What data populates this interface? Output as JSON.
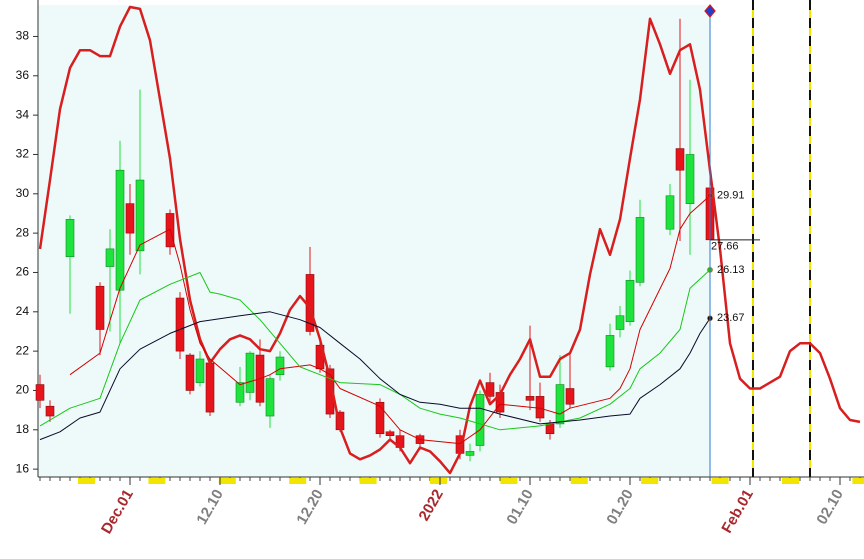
{
  "chart_data": {
    "type": "candlestick",
    "xlim": [
      -0.2,
      82.4
    ],
    "ylim": [
      15.6,
      39.6
    ],
    "yticks": [
      16,
      18,
      20,
      22,
      24,
      26,
      28,
      30,
      32,
      34,
      36,
      38
    ],
    "xticks": [
      {
        "value": 9,
        "label": "Dec.01"
      },
      {
        "value": 18,
        "label": "12.10"
      },
      {
        "value": 28,
        "label": "12.20"
      },
      {
        "value": 40,
        "label": "2022"
      },
      {
        "value": 49,
        "label": "01.10"
      },
      {
        "value": 59,
        "label": "01.20"
      },
      {
        "value": 71,
        "label": "Feb.01"
      },
      {
        "value": 80,
        "label": "02.10"
      }
    ],
    "up_color": "#1ee33c",
    "down_color": "#e8141c",
    "x": [
      0,
      1,
      3,
      6,
      7,
      8,
      9,
      10,
      13,
      14,
      15,
      16,
      17,
      20,
      21,
      22,
      23,
      24,
      27,
      28,
      29,
      30,
      34,
      35,
      36,
      38,
      42,
      43,
      44,
      45,
      46,
      49,
      50,
      51,
      52,
      53,
      57,
      58,
      59,
      60,
      63,
      64,
      65,
      67
    ],
    "open": [
      20.3,
      19.2,
      26.8,
      25.3,
      26.3,
      25.1,
      29.5,
      27.1,
      29.0,
      24.7,
      21.8,
      20.4,
      21.4,
      19.4,
      19.9,
      21.8,
      18.7,
      20.8,
      25.9,
      22.3,
      21.1,
      18.9,
      19.4,
      17.9,
      17.7,
      17.7,
      17.7,
      16.7,
      17.2,
      20.4,
      19.9,
      19.7,
      19.7,
      18.3,
      18.3,
      20.1,
      21.2,
      23.1,
      23.5,
      25.5,
      28.2,
      32.3,
      29.5,
      30.3
    ],
    "high": [
      20.8,
      19.5,
      28.9,
      25.5,
      28.2,
      32.7,
      30.5,
      35.3,
      29.2,
      25.0,
      21.9,
      22.0,
      21.6,
      21.2,
      22.0,
      22.6,
      20.8,
      22.0,
      27.3,
      22.6,
      21.3,
      19.0,
      19.6,
      18.0,
      18.0,
      17.8,
      18.0,
      17.3,
      20.0,
      20.9,
      20.3,
      23.3,
      20.4,
      18.5,
      21.8,
      22.0,
      23.4,
      24.3,
      26.1,
      29.7,
      30.5,
      38.9,
      35.8,
      30.9
    ],
    "low": [
      19.1,
      18.4,
      23.9,
      21.8,
      23.0,
      22.4,
      26.9,
      25.9,
      26.9,
      21.6,
      19.8,
      20.2,
      18.7,
      19.2,
      19.5,
      19.2,
      18.1,
      20.5,
      22.8,
      20.9,
      18.6,
      17.9,
      17.6,
      17.5,
      16.9,
      17.1,
      16.5,
      16.4,
      16.9,
      19.3,
      18.6,
      19.0,
      18.4,
      17.5,
      18.1,
      19.1,
      21.0,
      22.7,
      23.3,
      25.3,
      27.9,
      27.6,
      26.9,
      27.5
    ],
    "close": [
      19.5,
      18.7,
      28.7,
      23.1,
      27.2,
      31.2,
      28.0,
      30.7,
      27.3,
      22.0,
      20.0,
      21.6,
      18.9,
      20.4,
      21.9,
      19.4,
      20.6,
      21.7,
      23.0,
      21.1,
      18.8,
      18.0,
      17.8,
      17.7,
      17.1,
      17.3,
      16.8,
      16.9,
      19.8,
      19.7,
      18.9,
      19.5,
      18.6,
      17.8,
      20.3,
      19.3,
      22.8,
      23.8,
      25.6,
      28.8,
      29.9,
      31.2,
      32.0,
      27.66
    ],
    "close_end_label": true,
    "series": [
      {
        "color": "#d81e1e",
        "width": 2.5,
        "end_label": false,
        "x": [
          0,
          1,
          2,
          3,
          4,
          5,
          6,
          7,
          8,
          9,
          10,
          11,
          12,
          13,
          14,
          15,
          16,
          17,
          18,
          19,
          20,
          21,
          22,
          23,
          24,
          25,
          26,
          27,
          28,
          29,
          30,
          31,
          32,
          33,
          34,
          35,
          36,
          37,
          38,
          39,
          40,
          41,
          42,
          43,
          44,
          45,
          46,
          47,
          48,
          49,
          50,
          51,
          52,
          53,
          54,
          55,
          56,
          57,
          58,
          59,
          60,
          61,
          62,
          63,
          64,
          65,
          66,
          67,
          68,
          69,
          70,
          71,
          72,
          73,
          74,
          75,
          76,
          77,
          78,
          79,
          80,
          81,
          82
        ],
        "values": [
          27.2,
          30.7,
          34.3,
          36.4,
          37.3,
          37.3,
          37.0,
          37.0,
          38.5,
          39.5,
          39.4,
          37.8,
          34.8,
          31.8,
          27.7,
          24.6,
          22.6,
          21.4,
          22.1,
          22.6,
          22.8,
          22.6,
          22.1,
          22.0,
          22.9,
          24.1,
          24.8,
          24.2,
          22.6,
          20.6,
          18.1,
          16.8,
          16.5,
          16.7,
          17.0,
          17.5,
          17.1,
          16.3,
          17.1,
          16.9,
          16.4,
          15.8,
          16.8,
          19.2,
          20.5,
          19.3,
          19.8,
          20.8,
          21.6,
          22.6,
          20.7,
          20.7,
          21.6,
          21.9,
          23.1,
          25.9,
          28.2,
          26.9,
          28.7,
          31.8,
          34.8,
          38.9,
          37.6,
          36.1,
          37.3,
          37.6,
          35.3,
          31.2,
          27.2,
          22.4,
          20.6,
          20.1,
          20.1,
          20.4,
          20.7,
          22.0,
          22.4,
          22.4,
          21.9,
          20.6,
          19.1,
          18.5,
          18.4
        ]
      },
      {
        "color": "#d40000",
        "width": 1,
        "end_label": true,
        "x": [
          3,
          6,
          8,
          10,
          13,
          14,
          15,
          16,
          17,
          20,
          22,
          23,
          24,
          27,
          28,
          29,
          30,
          34,
          36,
          38,
          42,
          44,
          46,
          50,
          52,
          53,
          57,
          58,
          59,
          60,
          63,
          64,
          65,
          67
        ],
        "values": [
          20.8,
          21.9,
          25.2,
          27.4,
          28.2,
          26.4,
          24.1,
          22.4,
          21.6,
          20.3,
          20.6,
          20.8,
          21.1,
          21.3,
          21.1,
          20.8,
          20.1,
          19.2,
          18.0,
          17.5,
          17.3,
          18.0,
          19.3,
          19.1,
          18.8,
          19.1,
          19.6,
          20.1,
          21.1,
          23.1,
          26.2,
          28.2,
          29.0,
          29.91
        ]
      },
      {
        "color": "#19c819",
        "width": 1,
        "end_label": true,
        "x": [
          0,
          3,
          6,
          8,
          10,
          13,
          16,
          17,
          18,
          20,
          22,
          24,
          26,
          28,
          30,
          34,
          36,
          38,
          40,
          42,
          44,
          46,
          50,
          54,
          57,
          59,
          60,
          62,
          64,
          65,
          67
        ],
        "values": [
          18.2,
          19.1,
          19.6,
          22.4,
          24.6,
          25.4,
          26.0,
          25.0,
          24.9,
          24.6,
          23.6,
          22.4,
          21.2,
          20.8,
          20.4,
          20.3,
          19.8,
          19.1,
          18.8,
          18.6,
          18.3,
          18.0,
          18.2,
          18.6,
          19.3,
          20.1,
          21.1,
          21.9,
          23.1,
          25.2,
          26.13
        ]
      },
      {
        "color": "#0a0a2a",
        "width": 1,
        "end_label": true,
        "x": [
          0,
          2,
          4,
          6,
          8,
          10,
          13,
          16,
          20,
          23,
          26,
          28,
          30,
          32,
          34,
          36,
          38,
          40,
          42,
          44,
          46,
          50,
          54,
          57,
          59,
          60,
          62,
          64,
          65,
          66,
          67
        ],
        "values": [
          17.5,
          17.9,
          18.6,
          18.9,
          21.1,
          22.1,
          22.9,
          23.5,
          23.8,
          24.0,
          23.6,
          23.2,
          22.4,
          21.6,
          20.6,
          19.8,
          19.4,
          19.3,
          19.1,
          19.1,
          18.8,
          18.3,
          18.5,
          18.7,
          18.8,
          19.6,
          20.3,
          21.1,
          21.9,
          22.9,
          23.67
        ]
      }
    ]
  }
}
